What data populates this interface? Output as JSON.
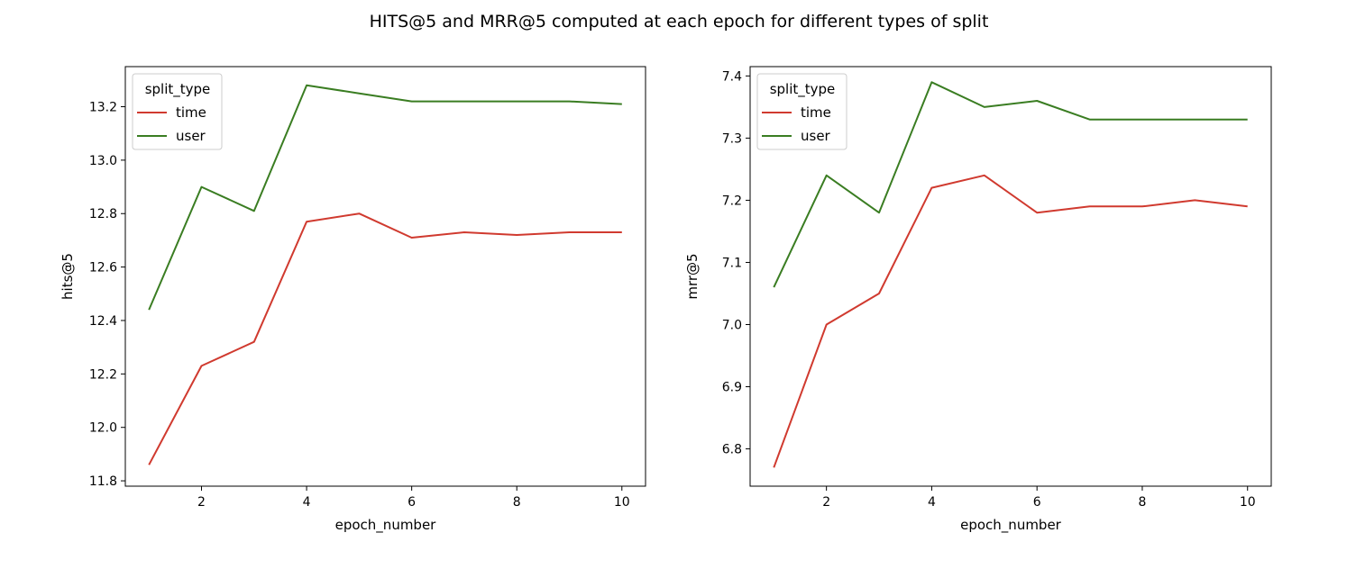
{
  "figure": {
    "suptitle": "HITS@5 and MRR@5 computed at each epoch for different types of split"
  },
  "chart_data": [
    {
      "type": "line",
      "xlabel": "epoch_number",
      "ylabel": "hits@5",
      "xlim": [
        0.55,
        10.45
      ],
      "ylim": [
        11.78,
        13.35
      ],
      "xticks": [
        2,
        4,
        6,
        8,
        10
      ],
      "yticks": [
        11.8,
        12.0,
        12.2,
        12.4,
        12.6,
        12.8,
        13.0,
        13.2
      ],
      "ytick_labels": [
        "11.8",
        "12.0",
        "12.2",
        "12.4",
        "12.6",
        "12.8",
        "13.0",
        "13.2"
      ],
      "legend": {
        "title": "split_type",
        "placement": "upper left"
      },
      "grid": false,
      "x": [
        1,
        2,
        3,
        4,
        5,
        6,
        7,
        8,
        9,
        10
      ],
      "series": [
        {
          "name": "time",
          "color": "#d03a2f",
          "values": [
            11.86,
            12.23,
            12.32,
            12.77,
            12.8,
            12.71,
            12.73,
            12.72,
            12.73,
            12.73
          ]
        },
        {
          "name": "user",
          "color": "#3a7d22",
          "values": [
            12.44,
            12.9,
            12.81,
            13.28,
            13.25,
            13.22,
            13.22,
            13.22,
            13.22,
            13.21
          ]
        }
      ]
    },
    {
      "type": "line",
      "xlabel": "epoch_number",
      "ylabel": "mrr@5",
      "xlim": [
        0.55,
        10.45
      ],
      "ylim": [
        6.74,
        7.415
      ],
      "xticks": [
        2,
        4,
        6,
        8,
        10
      ],
      "yticks": [
        6.8,
        6.9,
        7.0,
        7.1,
        7.2,
        7.3,
        7.4
      ],
      "ytick_labels": [
        "6.8",
        "6.9",
        "7.0",
        "7.1",
        "7.2",
        "7.3",
        "7.4"
      ],
      "legend": {
        "title": "split_type",
        "placement": "upper left"
      },
      "grid": false,
      "x": [
        1,
        2,
        3,
        4,
        5,
        6,
        7,
        8,
        9,
        10
      ],
      "series": [
        {
          "name": "time",
          "color": "#d03a2f",
          "values": [
            6.77,
            7.0,
            7.05,
            7.22,
            7.24,
            7.18,
            7.19,
            7.19,
            7.2,
            7.19
          ]
        },
        {
          "name": "user",
          "color": "#3a7d22",
          "values": [
            7.06,
            7.24,
            7.18,
            7.39,
            7.35,
            7.36,
            7.33,
            7.33,
            7.33,
            7.33
          ]
        }
      ]
    }
  ]
}
